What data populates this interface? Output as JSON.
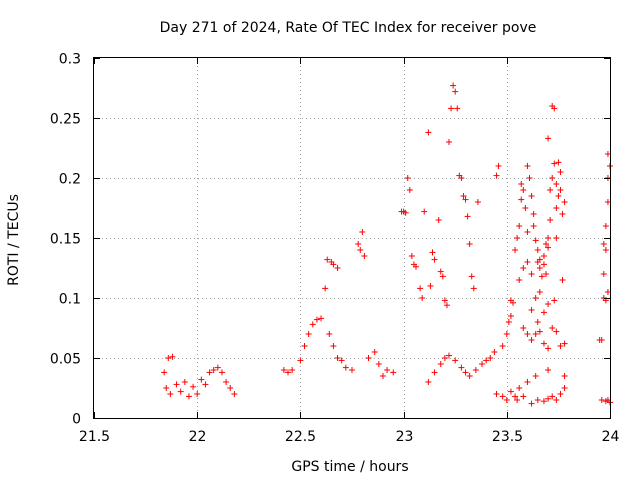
{
  "chart_data": {
    "type": "scatter",
    "title": "Day 271 of 2024, Rate Of TEC Index for receiver pove",
    "xlabel": "GPS time / hours",
    "ylabel": "ROTI / TECUs",
    "xlim": [
      21.5,
      24
    ],
    "ylim": [
      0,
      0.3
    ],
    "xticks": [
      21.5,
      22,
      22.5,
      23,
      23.5,
      24
    ],
    "xtick_labels": [
      "21.5",
      "22",
      "22.5",
      "23",
      "23.5",
      "24"
    ],
    "yticks": [
      0,
      0.05,
      0.1,
      0.15,
      0.2,
      0.25,
      0.3
    ],
    "ytick_labels": [
      "0",
      "0.05",
      "0.1",
      "0.15",
      "0.2",
      "0.25",
      "0.3"
    ],
    "grid": true,
    "marker": "+",
    "color": "#ff0000",
    "series": [
      {
        "name": "ROTI",
        "points": [
          [
            21.84,
            0.038
          ],
          [
            21.85,
            0.025
          ],
          [
            21.86,
            0.05
          ],
          [
            21.87,
            0.02
          ],
          [
            21.88,
            0.051
          ],
          [
            21.9,
            0.028
          ],
          [
            21.92,
            0.022
          ],
          [
            21.94,
            0.03
          ],
          [
            21.96,
            0.018
          ],
          [
            21.98,
            0.026
          ],
          [
            22.0,
            0.02
          ],
          [
            22.02,
            0.032
          ],
          [
            22.04,
            0.028
          ],
          [
            22.06,
            0.038
          ],
          [
            22.08,
            0.04
          ],
          [
            22.1,
            0.042
          ],
          [
            22.12,
            0.038
          ],
          [
            22.14,
            0.03
          ],
          [
            22.16,
            0.025
          ],
          [
            22.18,
            0.02
          ],
          [
            22.42,
            0.04
          ],
          [
            22.44,
            0.038
          ],
          [
            22.46,
            0.04
          ],
          [
            22.5,
            0.048
          ],
          [
            22.52,
            0.06
          ],
          [
            22.54,
            0.07
          ],
          [
            22.56,
            0.078
          ],
          [
            22.58,
            0.082
          ],
          [
            22.6,
            0.083
          ],
          [
            22.62,
            0.108
          ],
          [
            22.63,
            0.132
          ],
          [
            22.65,
            0.13
          ],
          [
            22.66,
            0.128
          ],
          [
            22.68,
            0.125
          ],
          [
            22.64,
            0.07
          ],
          [
            22.66,
            0.06
          ],
          [
            22.68,
            0.05
          ],
          [
            22.7,
            0.048
          ],
          [
            22.72,
            0.042
          ],
          [
            22.75,
            0.04
          ],
          [
            22.78,
            0.145
          ],
          [
            22.79,
            0.14
          ],
          [
            22.8,
            0.155
          ],
          [
            22.81,
            0.135
          ],
          [
            22.83,
            0.05
          ],
          [
            22.86,
            0.055
          ],
          [
            22.88,
            0.045
          ],
          [
            22.9,
            0.035
          ],
          [
            22.92,
            0.04
          ],
          [
            22.95,
            0.038
          ],
          [
            22.99,
            0.172
          ],
          [
            23.0,
            0.172
          ],
          [
            23.01,
            0.171
          ],
          [
            23.02,
            0.2
          ],
          [
            23.03,
            0.19
          ],
          [
            23.04,
            0.135
          ],
          [
            23.05,
            0.128
          ],
          [
            23.06,
            0.126
          ],
          [
            23.08,
            0.108
          ],
          [
            23.09,
            0.1
          ],
          [
            23.1,
            0.172
          ],
          [
            23.12,
            0.238
          ],
          [
            23.13,
            0.11
          ],
          [
            23.14,
            0.138
          ],
          [
            23.15,
            0.132
          ],
          [
            23.17,
            0.165
          ],
          [
            23.18,
            0.122
          ],
          [
            23.19,
            0.118
          ],
          [
            23.2,
            0.098
          ],
          [
            23.21,
            0.094
          ],
          [
            23.22,
            0.23
          ],
          [
            23.23,
            0.258
          ],
          [
            23.24,
            0.277
          ],
          [
            23.25,
            0.272
          ],
          [
            23.26,
            0.258
          ],
          [
            23.27,
            0.202
          ],
          [
            23.28,
            0.2
          ],
          [
            23.29,
            0.185
          ],
          [
            23.3,
            0.182
          ],
          [
            23.31,
            0.168
          ],
          [
            23.32,
            0.145
          ],
          [
            23.33,
            0.118
          ],
          [
            23.34,
            0.108
          ],
          [
            23.36,
            0.18
          ],
          [
            23.12,
            0.03
          ],
          [
            23.15,
            0.038
          ],
          [
            23.18,
            0.045
          ],
          [
            23.2,
            0.05
          ],
          [
            23.22,
            0.052
          ],
          [
            23.25,
            0.048
          ],
          [
            23.28,
            0.042
          ],
          [
            23.3,
            0.038
          ],
          [
            23.32,
            0.035
          ],
          [
            23.35,
            0.04
          ],
          [
            23.38,
            0.045
          ],
          [
            23.4,
            0.048
          ],
          [
            23.42,
            0.05
          ],
          [
            23.44,
            0.055
          ],
          [
            23.45,
            0.202
          ],
          [
            23.46,
            0.21
          ],
          [
            23.48,
            0.06
          ],
          [
            23.5,
            0.07
          ],
          [
            23.51,
            0.08
          ],
          [
            23.52,
            0.085
          ],
          [
            23.52,
            0.098
          ],
          [
            23.53,
            0.096
          ],
          [
            23.54,
            0.14
          ],
          [
            23.55,
            0.15
          ],
          [
            23.56,
            0.16
          ],
          [
            23.57,
            0.182
          ],
          [
            23.57,
            0.195
          ],
          [
            23.58,
            0.19
          ],
          [
            23.59,
            0.175
          ],
          [
            23.6,
            0.155
          ],
          [
            23.6,
            0.21
          ],
          [
            23.61,
            0.2
          ],
          [
            23.62,
            0.185
          ],
          [
            23.63,
            0.17
          ],
          [
            23.63,
            0.16
          ],
          [
            23.64,
            0.148
          ],
          [
            23.65,
            0.14
          ],
          [
            23.65,
            0.13
          ],
          [
            23.66,
            0.125
          ],
          [
            23.67,
            0.118
          ],
          [
            23.68,
            0.128
          ],
          [
            23.68,
            0.135
          ],
          [
            23.69,
            0.12
          ],
          [
            23.69,
            0.145
          ],
          [
            23.7,
            0.233
          ],
          [
            23.7,
            0.15
          ],
          [
            23.71,
            0.165
          ],
          [
            23.71,
            0.19
          ],
          [
            23.72,
            0.2
          ],
          [
            23.72,
            0.26
          ],
          [
            23.73,
            0.258
          ],
          [
            23.73,
            0.212
          ],
          [
            23.74,
            0.195
          ],
          [
            23.74,
            0.175
          ],
          [
            23.75,
            0.185
          ],
          [
            23.75,
            0.213
          ],
          [
            23.76,
            0.205
          ],
          [
            23.76,
            0.19
          ],
          [
            23.77,
            0.17
          ],
          [
            23.78,
            0.18
          ],
          [
            23.58,
            0.075
          ],
          [
            23.6,
            0.07
          ],
          [
            23.62,
            0.065
          ],
          [
            23.64,
            0.07
          ],
          [
            23.66,
            0.072
          ],
          [
            23.68,
            0.062
          ],
          [
            23.7,
            0.058
          ],
          [
            23.72,
            0.075
          ],
          [
            23.74,
            0.072
          ],
          [
            23.76,
            0.06
          ],
          [
            23.78,
            0.062
          ],
          [
            23.62,
            0.09
          ],
          [
            23.65,
            0.08
          ],
          [
            23.68,
            0.088
          ],
          [
            23.7,
            0.095
          ],
          [
            23.73,
            0.098
          ],
          [
            23.56,
            0.115
          ],
          [
            23.58,
            0.125
          ],
          [
            23.6,
            0.13
          ],
          [
            23.62,
            0.12
          ],
          [
            23.66,
            0.132
          ],
          [
            23.7,
            0.142
          ],
          [
            23.74,
            0.15
          ],
          [
            23.77,
            0.115
          ],
          [
            23.64,
            0.1
          ],
          [
            23.66,
            0.105
          ],
          [
            23.95,
            0.065
          ],
          [
            23.96,
            0.065
          ],
          [
            23.97,
            0.12
          ],
          [
            23.97,
            0.145
          ],
          [
            23.98,
            0.14
          ],
          [
            23.98,
            0.16
          ],
          [
            23.99,
            0.2
          ],
          [
            23.99,
            0.22
          ],
          [
            23.99,
            0.18
          ],
          [
            24.0,
            0.21
          ],
          [
            23.97,
            0.1
          ],
          [
            23.98,
            0.098
          ],
          [
            23.99,
            0.105
          ],
          [
            23.96,
            0.015
          ],
          [
            23.98,
            0.014
          ],
          [
            23.99,
            0.015
          ],
          [
            24.0,
            0.013
          ],
          [
            23.55,
            0.015
          ],
          [
            23.58,
            0.018
          ],
          [
            23.62,
            0.012
          ],
          [
            23.65,
            0.015
          ],
          [
            23.68,
            0.014
          ],
          [
            23.7,
            0.016
          ],
          [
            23.72,
            0.018
          ],
          [
            23.74,
            0.015
          ],
          [
            23.76,
            0.02
          ],
          [
            23.78,
            0.025
          ],
          [
            23.45,
            0.02
          ],
          [
            23.48,
            0.018
          ],
          [
            23.5,
            0.015
          ],
          [
            23.52,
            0.022
          ],
          [
            23.54,
            0.018
          ],
          [
            23.56,
            0.025
          ],
          [
            23.6,
            0.03
          ],
          [
            23.64,
            0.035
          ],
          [
            23.7,
            0.04
          ],
          [
            23.78,
            0.035
          ]
        ]
      }
    ]
  }
}
